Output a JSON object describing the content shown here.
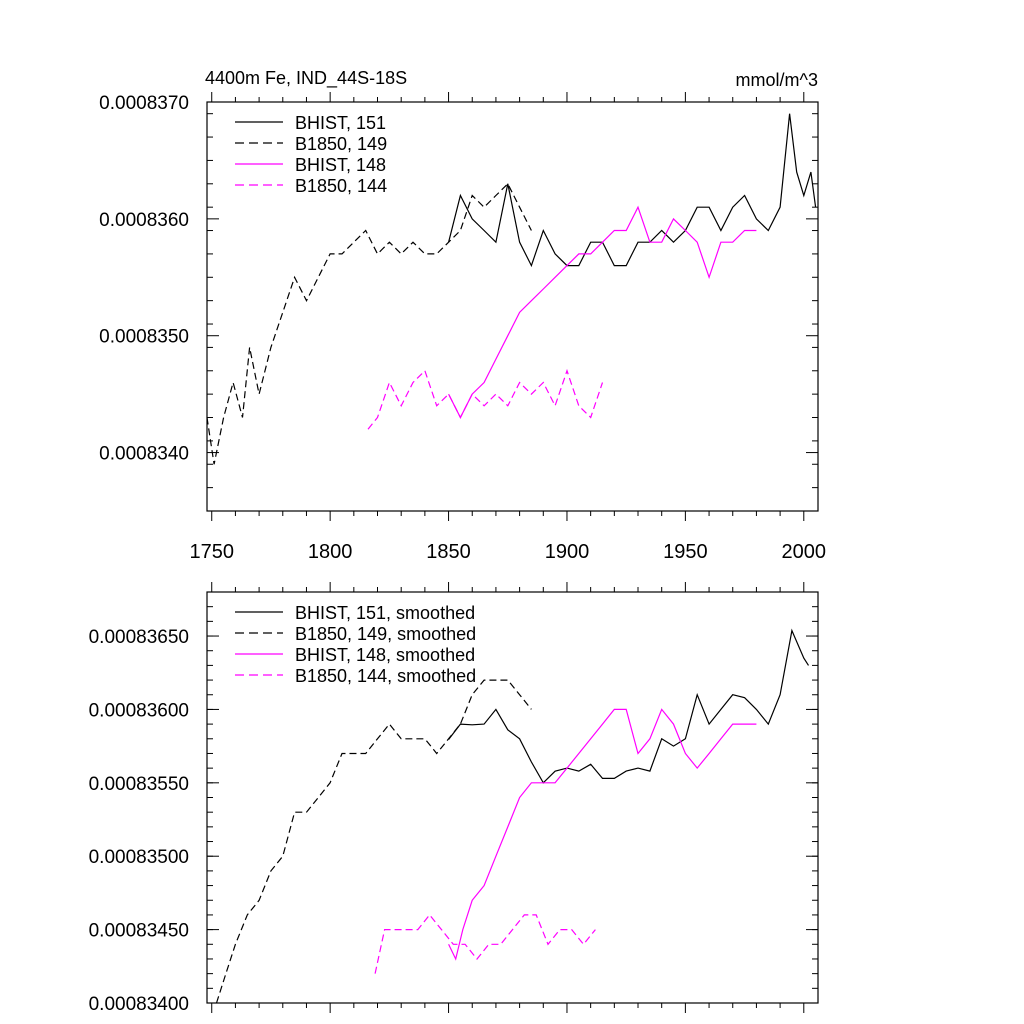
{
  "title_left": "4400m Fe, IND_44S-18S",
  "title_right": "mmol/m^3",
  "colors": {
    "black": "#000000",
    "magenta": "#ff00ff"
  },
  "chart_data": [
    {
      "type": "line",
      "name": "raw",
      "xlim": [
        1748,
        2006
      ],
      "ylim": [
        0.0008335,
        0.000837
      ],
      "yticks": [
        0.000834,
        0.000835,
        0.000836,
        0.000837
      ],
      "ytick_labels": [
        "0.0008340",
        "0.0008350",
        "0.0008360",
        "0.0008370"
      ],
      "xticks": [
        1750,
        1800,
        1850,
        1900,
        1950,
        2000
      ],
      "xtick_labels": [
        "1750",
        "1800",
        "1850",
        "1900",
        "1950",
        "2000"
      ],
      "series": [
        {
          "name": "BHIST, 151",
          "legend": "BHIST, 151",
          "color": "#000000",
          "dash": "solid",
          "x": [
            1850,
            1855,
            1860,
            1865,
            1870,
            1875,
            1880,
            1885,
            1890,
            1895,
            1900,
            1905,
            1910,
            1915,
            1920,
            1925,
            1930,
            1935,
            1940,
            1945,
            1950,
            1955,
            1960,
            1965,
            1970,
            1975,
            1980,
            1985,
            1990,
            1994,
            1997,
            2000,
            2003,
            2005
          ],
          "y": [
            0.0008358,
            0.0008362,
            0.000836,
            0.0008359,
            0.0008358,
            0.0008363,
            0.0008358,
            0.0008356,
            0.0008359,
            0.0008357,
            0.0008356,
            0.0008356,
            0.0008358,
            0.0008358,
            0.0008356,
            0.0008356,
            0.0008358,
            0.0008358,
            0.0008359,
            0.0008358,
            0.0008359,
            0.0008361,
            0.0008361,
            0.0008359,
            0.0008361,
            0.0008362,
            0.000836,
            0.0008359,
            0.0008361,
            0.0008369,
            0.0008364,
            0.0008362,
            0.0008364,
            0.0008361
          ]
        },
        {
          "name": "B1850, 149",
          "legend": "B1850, 149",
          "color": "#000000",
          "dash": "dashed",
          "x": [
            1748,
            1751,
            1755,
            1759,
            1763,
            1766,
            1770,
            1775,
            1780,
            1785,
            1790,
            1795,
            1800,
            1805,
            1810,
            1815,
            1820,
            1825,
            1830,
            1835,
            1840,
            1845,
            1850,
            1855,
            1860,
            1865,
            1870,
            1875,
            1880,
            1885
          ],
          "y": [
            0.0008343,
            0.0008339,
            0.0008343,
            0.0008346,
            0.0008343,
            0.0008349,
            0.0008345,
            0.0008349,
            0.0008352,
            0.0008355,
            0.0008353,
            0.0008355,
            0.0008357,
            0.0008357,
            0.0008358,
            0.0008359,
            0.0008357,
            0.0008358,
            0.0008357,
            0.0008358,
            0.0008357,
            0.0008357,
            0.0008358,
            0.0008359,
            0.0008362,
            0.0008361,
            0.0008362,
            0.0008363,
            0.0008361,
            0.0008359
          ]
        },
        {
          "name": "BHIST, 148",
          "legend": "BHIST, 148",
          "color": "#ff00ff",
          "dash": "solid",
          "x": [
            1850,
            1855,
            1860,
            1865,
            1870,
            1875,
            1880,
            1885,
            1890,
            1895,
            1900,
            1905,
            1910,
            1915,
            1920,
            1925,
            1930,
            1935,
            1940,
            1945,
            1950,
            1955,
            1960,
            1965,
            1970,
            1975,
            1980
          ],
          "y": [
            0.0008345,
            0.0008343,
            0.0008345,
            0.0008346,
            0.0008348,
            0.000835,
            0.0008352,
            0.0008353,
            0.0008354,
            0.0008355,
            0.0008356,
            0.0008357,
            0.0008357,
            0.0008358,
            0.0008359,
            0.0008359,
            0.0008361,
            0.0008358,
            0.0008358,
            0.000836,
            0.0008359,
            0.0008358,
            0.0008355,
            0.0008358,
            0.0008358,
            0.0008359,
            0.0008359
          ]
        },
        {
          "name": "B1850, 144",
          "legend": "B1850, 144",
          "color": "#ff00ff",
          "dash": "dashed",
          "x": [
            1816,
            1820,
            1825,
            1830,
            1835,
            1840,
            1845,
            1850,
            1855,
            1860,
            1865,
            1870,
            1875,
            1880,
            1885,
            1890,
            1895,
            1900,
            1905,
            1910,
            1915
          ],
          "y": [
            0.0008342,
            0.0008343,
            0.0008346,
            0.0008344,
            0.0008346,
            0.0008347,
            0.0008344,
            0.0008345,
            0.0008343,
            0.0008345,
            0.0008344,
            0.0008345,
            0.0008344,
            0.0008346,
            0.0008345,
            0.0008346,
            0.0008344,
            0.0008347,
            0.0008344,
            0.0008343,
            0.0008346
          ]
        }
      ]
    },
    {
      "type": "line",
      "name": "smoothed",
      "xlim": [
        1748,
        2006
      ],
      "ylim": [
        0.000834,
        0.0008368
      ],
      "yticks": [
        0.000834,
        0.0008345,
        0.000835,
        0.0008355,
        0.000836,
        0.0008365
      ],
      "ytick_labels": [
        "0.00083400",
        "0.00083450",
        "0.00083500",
        "0.00083550",
        "0.00083600",
        "0.00083650"
      ],
      "xticks": [
        1750,
        1800,
        1850,
        1900,
        1950,
        2000
      ],
      "series": [
        {
          "name": "BHIST, 151, smoothed",
          "legend": "BHIST, 151, smoothed",
          "color": "#000000",
          "dash": "solid",
          "x": [
            1850,
            1855,
            1860,
            1865,
            1870,
            1875,
            1880,
            1885,
            1890,
            1895,
            1900,
            1905,
            1910,
            1915,
            1920,
            1925,
            1930,
            1935,
            1940,
            1945,
            1950,
            1955,
            1960,
            1965,
            1970,
            1975,
            1980,
            1985,
            1990,
            1995,
            2000,
            2002
          ],
          "y": [
            0.000835795,
            0.0008359,
            0.000835895,
            0.0008359,
            0.000836,
            0.000835861,
            0.0008358,
            0.000835642,
            0.0008355,
            0.000835579,
            0.0008356,
            0.00083558,
            0.000835626,
            0.00083553,
            0.00083553,
            0.00083558,
            0.0008356,
            0.00083558,
            0.0008358,
            0.00083575,
            0.0008358,
            0.0008361,
            0.0008359,
            0.000836,
            0.0008361,
            0.00083608,
            0.000836,
            0.0008359,
            0.0008361,
            0.000836537,
            0.00083635,
            0.0008363
          ]
        },
        {
          "name": "B1850, 149, smoothed",
          "legend": "B1850, 149, smoothed",
          "color": "#000000",
          "dash": "dashed",
          "x": [
            1752,
            1756,
            1760,
            1765,
            1770,
            1775,
            1780,
            1785,
            1790,
            1795,
            1800,
            1805,
            1810,
            1815,
            1820,
            1825,
            1830,
            1835,
            1840,
            1845,
            1850,
            1855,
            1860,
            1865,
            1870,
            1875,
            1880,
            1885
          ],
          "y": [
            0.000834,
            0.0008342,
            0.0008344,
            0.0008346,
            0.0008347,
            0.0008349,
            0.000835,
            0.0008353,
            0.0008353,
            0.0008354,
            0.0008355,
            0.0008357,
            0.0008357,
            0.0008357,
            0.0008358,
            0.0008359,
            0.0008358,
            0.0008358,
            0.0008358,
            0.0008357,
            0.0008358,
            0.0008359,
            0.0008361,
            0.0008362,
            0.0008362,
            0.0008362,
            0.0008361,
            0.000836
          ]
        },
        {
          "name": "BHIST, 148, smoothed",
          "legend": "BHIST, 148, smoothed",
          "color": "#ff00ff",
          "dash": "solid",
          "x": [
            1850,
            1853,
            1856,
            1860,
            1865,
            1870,
            1875,
            1880,
            1885,
            1890,
            1895,
            1900,
            1905,
            1910,
            1915,
            1920,
            1925,
            1930,
            1935,
            1940,
            1945,
            1950,
            1955,
            1960,
            1965,
            1970,
            1975,
            1980
          ],
          "y": [
            0.0008344,
            0.0008343,
            0.0008345,
            0.0008347,
            0.0008348,
            0.000835,
            0.0008352,
            0.0008354,
            0.0008355,
            0.0008355,
            0.0008355,
            0.0008356,
            0.0008357,
            0.0008358,
            0.0008359,
            0.000836,
            0.000836,
            0.0008357,
            0.0008358,
            0.000836,
            0.0008359,
            0.0008357,
            0.0008356,
            0.0008357,
            0.0008358,
            0.0008359,
            0.0008359,
            0.0008359
          ]
        },
        {
          "name": "B1850, 144, smoothed",
          "legend": "B1850, 144, smoothed",
          "color": "#ff00ff",
          "dash": "dashed",
          "x": [
            1819,
            1823,
            1827,
            1832,
            1837,
            1842,
            1847,
            1852,
            1857,
            1862,
            1867,
            1872,
            1877,
            1882,
            1887,
            1892,
            1897,
            1902,
            1907,
            1912
          ],
          "y": [
            0.0008342,
            0.0008345,
            0.0008345,
            0.0008345,
            0.0008345,
            0.0008346,
            0.0008345,
            0.0008344,
            0.0008344,
            0.0008343,
            0.0008344,
            0.0008344,
            0.0008345,
            0.0008346,
            0.0008346,
            0.0008344,
            0.0008345,
            0.0008345,
            0.0008344,
            0.0008345
          ]
        }
      ]
    }
  ]
}
